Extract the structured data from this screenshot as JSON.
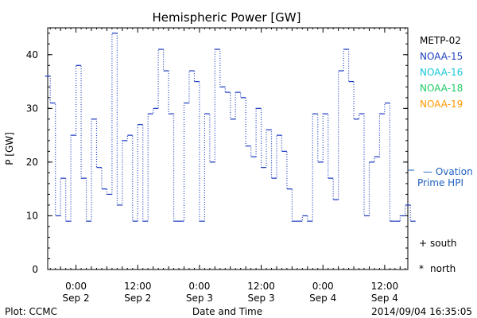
{
  "chart_data": {
    "type": "line",
    "title": "Hemispheric Power [GW]",
    "ylabel": "P [GW]",
    "xlabel": "Date and Time",
    "ylim": [
      0,
      45
    ],
    "y_ticks": [
      0,
      10,
      20,
      30,
      40
    ],
    "x_ticks": [
      {
        "time": "0:00",
        "date": "Sep 2"
      },
      {
        "time": "12:00",
        "date": "Sep 2"
      },
      {
        "time": "0:00",
        "date": "Sep 3"
      },
      {
        "time": "12:00",
        "date": "Sep 3"
      },
      {
        "time": "0:00",
        "date": "Sep 4"
      },
      {
        "time": "12:00",
        "date": "Sep 4"
      }
    ],
    "x_start_hours_before_sep2": 5.5,
    "x_end_hours_after_sep4": 16.5,
    "legend": [
      {
        "name": "METP-02",
        "color": "#000000"
      },
      {
        "name": "NOAA-15",
        "color": "#1f3fbf"
      },
      {
        "name": "NOAA-16",
        "color": "#18c8d8"
      },
      {
        "name": "NOAA-18",
        "color": "#22cc66"
      },
      {
        "name": "NOAA-19",
        "color": "#ff9900"
      }
    ],
    "ovation_label_line1": "— Ovation",
    "ovation_label_line2": "Prime HPI",
    "ovation_color": "#1f5fbf",
    "ovation_value": 18.5,
    "marker_legend": [
      {
        "symbol": "+",
        "label": "south"
      },
      {
        "symbol": "*",
        "label": "north"
      }
    ],
    "series": [
      {
        "name": "NOAA-15",
        "color": "#1f3fbf",
        "points": [
          [
            -5.5,
            36
          ],
          [
            -4.5,
            31
          ],
          [
            -3.5,
            10
          ],
          [
            -2.5,
            17
          ],
          [
            -1.5,
            9
          ],
          [
            -0.5,
            25
          ],
          [
            0.5,
            38
          ],
          [
            1.5,
            17
          ],
          [
            2.5,
            9
          ],
          [
            3.5,
            28
          ],
          [
            4.5,
            19
          ],
          [
            5.5,
            15
          ],
          [
            6.5,
            14
          ],
          [
            7.5,
            44
          ],
          [
            8.5,
            12
          ],
          [
            9.5,
            24
          ],
          [
            10.5,
            25
          ],
          [
            11.5,
            9
          ],
          [
            12.5,
            27
          ],
          [
            13.5,
            9
          ],
          [
            14.5,
            29
          ],
          [
            15.5,
            30
          ],
          [
            16.5,
            41
          ],
          [
            17.5,
            37
          ],
          [
            18.5,
            29
          ],
          [
            19.5,
            9
          ],
          [
            20.5,
            9
          ],
          [
            21.5,
            31
          ],
          [
            22.5,
            37
          ],
          [
            23.5,
            35
          ],
          [
            24.5,
            9
          ],
          [
            25.5,
            29
          ],
          [
            26.5,
            20
          ],
          [
            27.5,
            41
          ],
          [
            28.5,
            34
          ],
          [
            29.5,
            33
          ],
          [
            30.5,
            28
          ],
          [
            31.5,
            33
          ],
          [
            32.5,
            32
          ],
          [
            33.5,
            23
          ],
          [
            34.5,
            21
          ],
          [
            35.5,
            30
          ],
          [
            36.5,
            19
          ],
          [
            37.5,
            26
          ],
          [
            38.5,
            17
          ],
          [
            39.5,
            25
          ],
          [
            40.5,
            22
          ],
          [
            41.5,
            15
          ],
          [
            42.5,
            9
          ],
          [
            43.5,
            9
          ],
          [
            44.5,
            10
          ],
          [
            45.5,
            9
          ],
          [
            46.5,
            29
          ],
          [
            47.5,
            20
          ],
          [
            48.5,
            29
          ],
          [
            49.5,
            17
          ],
          [
            50.5,
            13
          ],
          [
            51.5,
            37
          ],
          [
            52.5,
            41
          ],
          [
            53.5,
            35
          ],
          [
            54.5,
            28
          ],
          [
            55.5,
            29
          ],
          [
            56.5,
            10
          ],
          [
            57.5,
            20
          ],
          [
            58.5,
            21
          ],
          [
            59.5,
            29
          ],
          [
            60.5,
            31
          ],
          [
            61.5,
            9
          ],
          [
            62.5,
            9
          ],
          [
            63.5,
            10
          ],
          [
            64.5,
            12
          ],
          [
            65.5,
            9
          ]
        ]
      }
    ]
  },
  "footer": {
    "left": "Plot: CCMC",
    "center": "Date and Time",
    "right": "2014/09/04 16:35:05"
  }
}
